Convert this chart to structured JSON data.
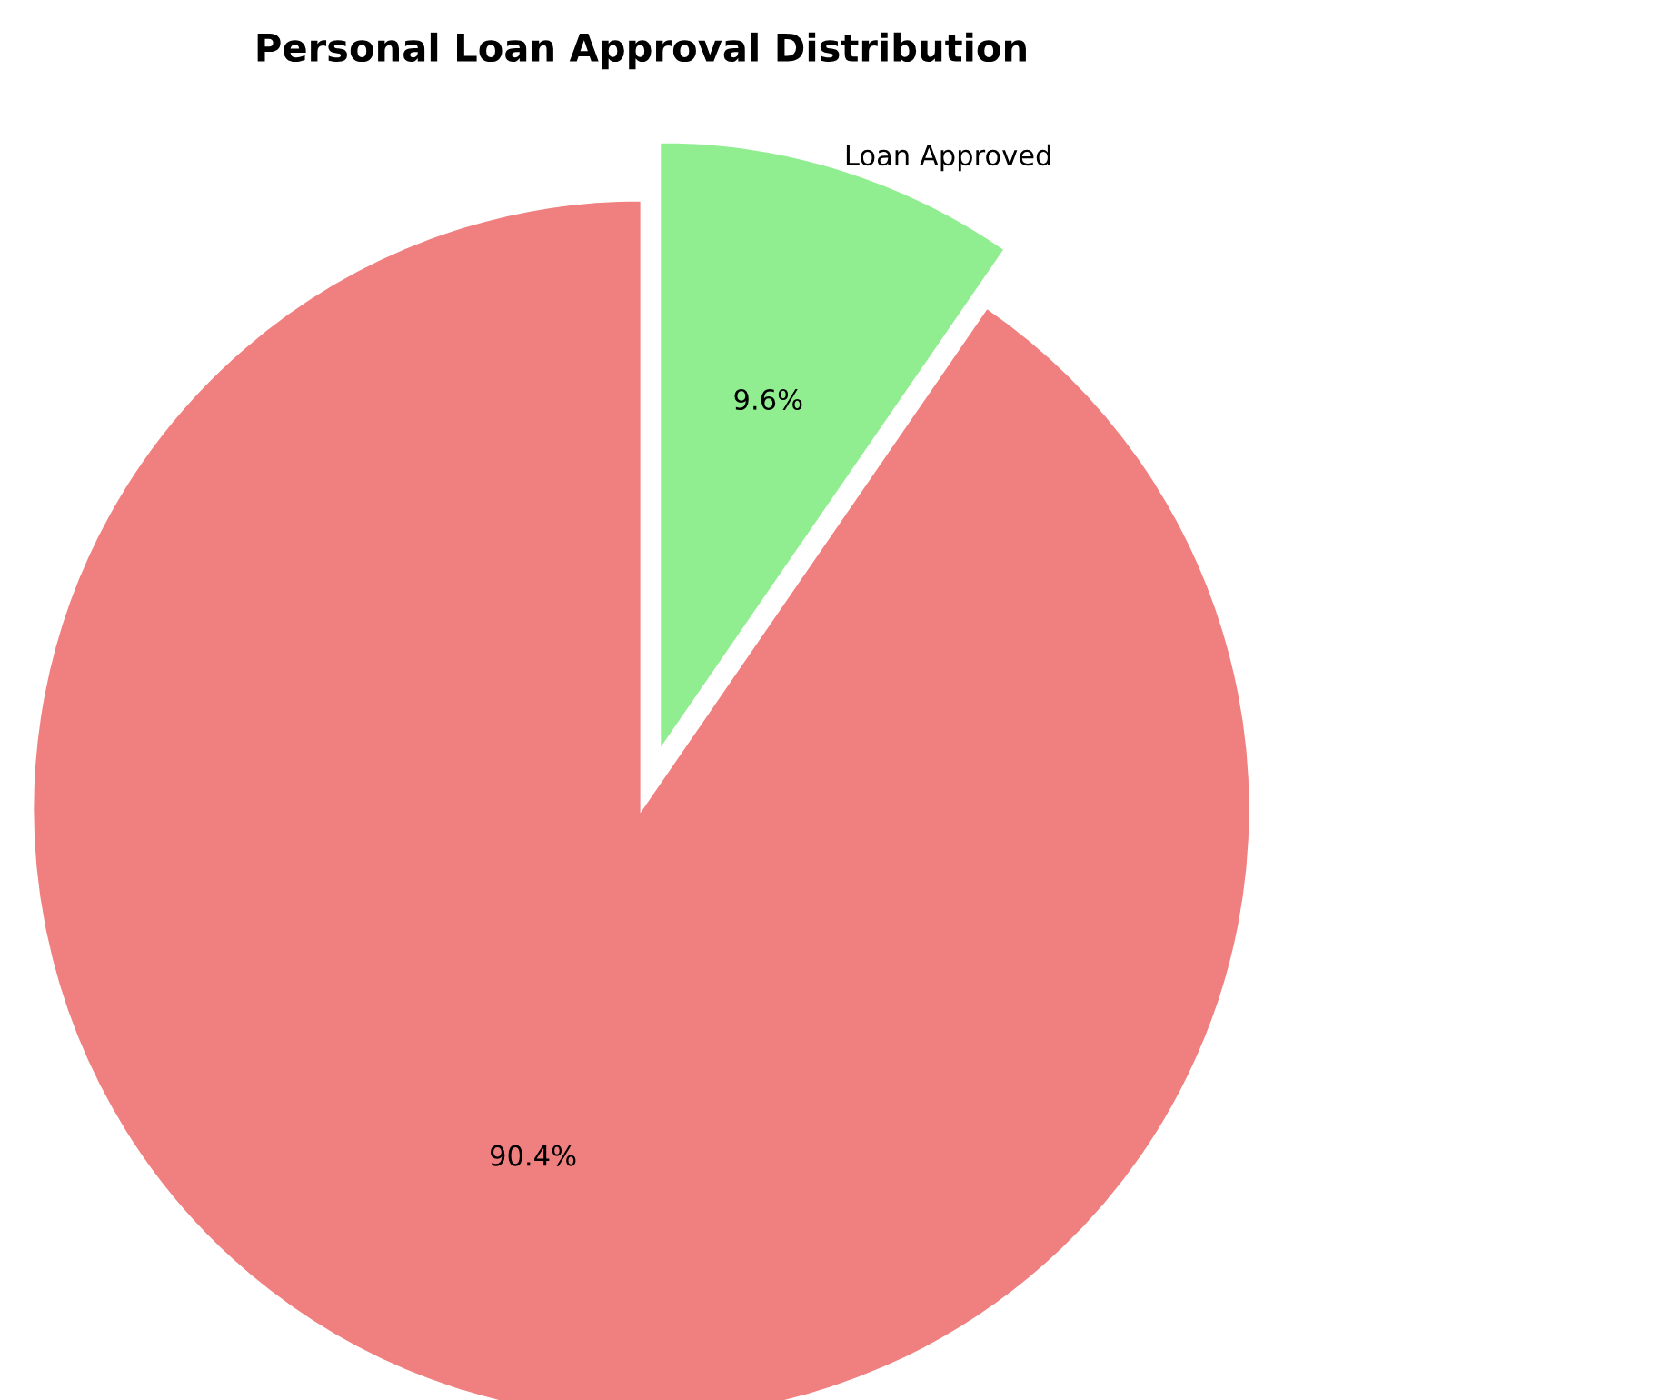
{
  "chart_data": {
    "type": "pie",
    "title": "Personal Loan Approval Distribution",
    "categories": [
      "Loan Approved",
      null
    ],
    "values": [
      9.6,
      90.4
    ],
    "colors": [
      "#90ee90",
      "#f08080"
    ],
    "value_labels": [
      "9.6%",
      "90.4%"
    ],
    "legend": false
  }
}
